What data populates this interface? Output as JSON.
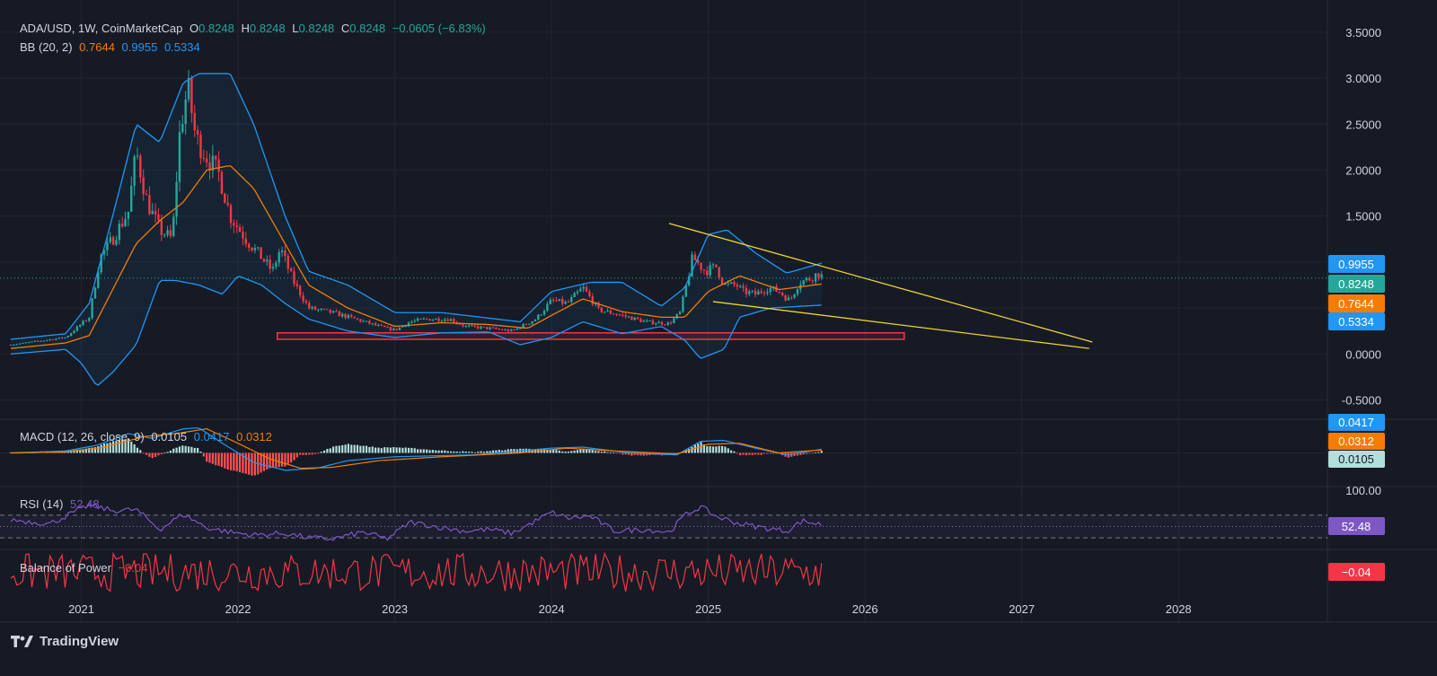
{
  "header": {
    "symbol": "ADA/USD, 1W, CoinMarketCap",
    "o_label": "O",
    "o_value": "0.8248",
    "h_label": "H",
    "h_value": "0.8248",
    "l_label": "L",
    "l_value": "0.8248",
    "c_label": "C",
    "c_value": "0.8248",
    "change": "−0.0605 (−6.83%)"
  },
  "bb_legend": {
    "label": "BB (20, 2)",
    "basis": "0.7644",
    "upper": "0.9955",
    "lower": "0.5334"
  },
  "macd_legend": {
    "label": "MACD (12, 26, close, 9)",
    "hist": "0.0105",
    "macd": "0.0417",
    "signal": "0.0312"
  },
  "rsi_legend": {
    "label": "RSI (14)",
    "value": "52.48"
  },
  "bop_legend": {
    "label": "Balance of Power",
    "value": "−0.04"
  },
  "footer": {
    "brand": "TradingView"
  },
  "colors": {
    "bg": "#161a25",
    "up": "#26a69a",
    "down": "#f23645",
    "basis": "#f57c00",
    "band": "#2196f3",
    "rsi": "#7e57c2",
    "trend": "#f0d232",
    "grid": "#232632"
  },
  "chart_data": {
    "type": "candlestick",
    "title": "ADA/USD, 1W, CoinMarketCap",
    "price_axis": {
      "ylim": [
        -0.7,
        3.85
      ],
      "ticks": [
        "3.5000",
        "3.0000",
        "2.5000",
        "2.0000",
        "1.5000",
        "0.0000",
        "-0.5000"
      ]
    },
    "time_axis": {
      "range": [
        2020.55,
        2028.95
      ],
      "ticks": [
        {
          "label": "2021",
          "t": 2021.0
        },
        {
          "label": "2022",
          "t": 2022.0
        },
        {
          "label": "2023",
          "t": 2023.0
        },
        {
          "label": "2024",
          "t": 2024.0
        },
        {
          "label": "2025",
          "t": 2025.0
        },
        {
          "label": "2026",
          "t": 2026.0
        },
        {
          "label": "2027",
          "t": 2027.0
        },
        {
          "label": "2028",
          "t": 2028.0
        }
      ]
    },
    "price_anchors": [
      [
        2020.55,
        0.1
      ],
      [
        2020.9,
        0.18
      ],
      [
        2021.05,
        0.4
      ],
      [
        2021.12,
        1.05
      ],
      [
        2021.2,
        1.25
      ],
      [
        2021.3,
        1.55
      ],
      [
        2021.35,
        2.2
      ],
      [
        2021.42,
        1.65
      ],
      [
        2021.5,
        1.35
      ],
      [
        2021.58,
        1.25
      ],
      [
        2021.63,
        2.45
      ],
      [
        2021.68,
        2.9
      ],
      [
        2021.73,
        2.35
      ],
      [
        2021.8,
        2.15
      ],
      [
        2021.88,
        1.95
      ],
      [
        2021.95,
        1.5
      ],
      [
        2022.05,
        1.25
      ],
      [
        2022.15,
        1.05
      ],
      [
        2022.22,
        0.9
      ],
      [
        2022.27,
        1.15
      ],
      [
        2022.35,
        0.8
      ],
      [
        2022.45,
        0.5
      ],
      [
        2022.6,
        0.45
      ],
      [
        2022.75,
        0.38
      ],
      [
        2022.9,
        0.3
      ],
      [
        2023.0,
        0.26
      ],
      [
        2023.1,
        0.35
      ],
      [
        2023.2,
        0.38
      ],
      [
        2023.35,
        0.38
      ],
      [
        2023.45,
        0.3
      ],
      [
        2023.6,
        0.28
      ],
      [
        2023.75,
        0.25
      ],
      [
        2023.9,
        0.38
      ],
      [
        2024.0,
        0.58
      ],
      [
        2024.1,
        0.55
      ],
      [
        2024.2,
        0.72
      ],
      [
        2024.3,
        0.48
      ],
      [
        2024.45,
        0.42
      ],
      [
        2024.6,
        0.35
      ],
      [
        2024.75,
        0.33
      ],
      [
        2024.82,
        0.45
      ],
      [
        2024.9,
        1.05
      ],
      [
        2024.98,
        0.9
      ],
      [
        2025.05,
        0.95
      ],
      [
        2025.1,
        0.75
      ],
      [
        2025.18,
        0.75
      ],
      [
        2025.22,
        0.68
      ],
      [
        2025.3,
        0.65
      ],
      [
        2025.38,
        0.72
      ],
      [
        2025.45,
        0.68
      ],
      [
        2025.52,
        0.58
      ],
      [
        2025.58,
        0.78
      ],
      [
        2025.65,
        0.82
      ],
      [
        2025.7,
        0.88
      ],
      [
        2025.74,
        0.8248
      ]
    ],
    "bb_upper_anchors": [
      [
        2020.55,
        0.16
      ],
      [
        2020.9,
        0.22
      ],
      [
        2021.05,
        0.55
      ],
      [
        2021.2,
        1.5
      ],
      [
        2021.35,
        2.5
      ],
      [
        2021.5,
        2.3
      ],
      [
        2021.65,
        2.95
      ],
      [
        2021.75,
        3.05
      ],
      [
        2021.95,
        3.05
      ],
      [
        2022.1,
        2.5
      ],
      [
        2022.3,
        1.5
      ],
      [
        2022.45,
        0.9
      ],
      [
        2022.7,
        0.75
      ],
      [
        2023.0,
        0.45
      ],
      [
        2023.3,
        0.45
      ],
      [
        2023.55,
        0.4
      ],
      [
        2023.8,
        0.35
      ],
      [
        2024.0,
        0.68
      ],
      [
        2024.25,
        0.78
      ],
      [
        2024.45,
        0.78
      ],
      [
        2024.7,
        0.52
      ],
      [
        2024.85,
        0.72
      ],
      [
        2025.0,
        1.3
      ],
      [
        2025.12,
        1.35
      ],
      [
        2025.3,
        1.1
      ],
      [
        2025.5,
        0.88
      ],
      [
        2025.74,
        0.9955
      ]
    ],
    "bb_basis_anchors": [
      [
        2020.55,
        0.06
      ],
      [
        2020.9,
        0.12
      ],
      [
        2021.05,
        0.2
      ],
      [
        2021.2,
        0.7
      ],
      [
        2021.35,
        1.2
      ],
      [
        2021.5,
        1.45
      ],
      [
        2021.65,
        1.65
      ],
      [
        2021.8,
        2.0
      ],
      [
        2021.95,
        2.05
      ],
      [
        2022.1,
        1.8
      ],
      [
        2022.3,
        1.2
      ],
      [
        2022.45,
        0.75
      ],
      [
        2022.7,
        0.5
      ],
      [
        2023.0,
        0.3
      ],
      [
        2023.3,
        0.34
      ],
      [
        2023.6,
        0.32
      ],
      [
        2023.85,
        0.28
      ],
      [
        2024.0,
        0.42
      ],
      [
        2024.2,
        0.6
      ],
      [
        2024.45,
        0.46
      ],
      [
        2024.7,
        0.4
      ],
      [
        2024.85,
        0.4
      ],
      [
        2025.0,
        0.68
      ],
      [
        2025.2,
        0.85
      ],
      [
        2025.45,
        0.7
      ],
      [
        2025.74,
        0.7644
      ]
    ],
    "bb_lower_anchors": [
      [
        2020.55,
        0.0
      ],
      [
        2020.9,
        0.05
      ],
      [
        2021.0,
        -0.1
      ],
      [
        2021.1,
        -0.35
      ],
      [
        2021.2,
        -0.2
      ],
      [
        2021.35,
        0.1
      ],
      [
        2021.5,
        0.8
      ],
      [
        2021.6,
        0.8
      ],
      [
        2021.75,
        0.75
      ],
      [
        2021.9,
        0.65
      ],
      [
        2022.0,
        0.85
      ],
      [
        2022.15,
        0.75
      ],
      [
        2022.3,
        0.55
      ],
      [
        2022.45,
        0.38
      ],
      [
        2022.7,
        0.25
      ],
      [
        2023.0,
        0.18
      ],
      [
        2023.3,
        0.23
      ],
      [
        2023.6,
        0.24
      ],
      [
        2023.8,
        0.1
      ],
      [
        2024.0,
        0.18
      ],
      [
        2024.2,
        0.35
      ],
      [
        2024.45,
        0.22
      ],
      [
        2024.7,
        0.3
      ],
      [
        2024.85,
        0.15
      ],
      [
        2024.95,
        -0.05
      ],
      [
        2025.1,
        0.05
      ],
      [
        2025.2,
        0.4
      ],
      [
        2025.4,
        0.5
      ],
      [
        2025.74,
        0.5334
      ]
    ],
    "trendlines": [
      {
        "from": [
          2024.75,
          1.42
        ],
        "to": [
          2027.45,
          0.13
        ]
      },
      {
        "from": [
          2025.03,
          0.57
        ],
        "to": [
          2027.43,
          0.06
        ]
      }
    ],
    "support_zone": {
      "t0": 2022.25,
      "t1": 2026.25,
      "p0": 0.16,
      "p1": 0.23
    },
    "current_price": 0.8248,
    "price_labels": [
      {
        "value": "0.9955",
        "price": 0.9955,
        "color": "#2196f3"
      },
      {
        "value": "0.8248",
        "price": 0.8248,
        "color": "#26a69a"
      },
      {
        "value": "0.7644",
        "price": 0.7644,
        "color": "#f57c00"
      },
      {
        "value": "0.5334",
        "price": 0.5334,
        "color": "#2196f3"
      }
    ],
    "macd": {
      "ylim": [
        -0.34,
        0.34
      ],
      "labels": [
        {
          "value": "0.0417",
          "level": 0.0417,
          "color": "#2196f3"
        },
        {
          "value": "0.0312",
          "level": 0.0312,
          "color": "#f57c00"
        },
        {
          "value": "0.0105",
          "level": 0.0105,
          "color": "#b2dfdb"
        }
      ],
      "macd_anchors": [
        [
          2020.55,
          0.0
        ],
        [
          2020.9,
          0.02
        ],
        [
          2021.1,
          0.08
        ],
        [
          2021.3,
          0.2
        ],
        [
          2021.45,
          0.15
        ],
        [
          2021.65,
          0.25
        ],
        [
          2021.75,
          0.26
        ],
        [
          2021.9,
          0.1
        ],
        [
          2022.1,
          -0.1
        ],
        [
          2022.3,
          -0.18
        ],
        [
          2022.5,
          -0.16
        ],
        [
          2022.7,
          -0.08
        ],
        [
          2023.0,
          -0.04
        ],
        [
          2023.5,
          -0.02
        ],
        [
          2024.0,
          0.05
        ],
        [
          2024.2,
          0.06
        ],
        [
          2024.5,
          0.0
        ],
        [
          2024.8,
          -0.02
        ],
        [
          2024.95,
          0.12
        ],
        [
          2025.1,
          0.13
        ],
        [
          2025.3,
          0.05
        ],
        [
          2025.5,
          -0.02
        ],
        [
          2025.74,
          0.0417
        ]
      ],
      "signal_anchors": [
        [
          2020.55,
          0.0
        ],
        [
          2020.9,
          0.01
        ],
        [
          2021.15,
          0.06
        ],
        [
          2021.4,
          0.17
        ],
        [
          2021.6,
          0.2
        ],
        [
          2021.8,
          0.25
        ],
        [
          2022.0,
          0.1
        ],
        [
          2022.2,
          -0.06
        ],
        [
          2022.4,
          -0.16
        ],
        [
          2022.6,
          -0.15
        ],
        [
          2022.9,
          -0.08
        ],
        [
          2023.3,
          -0.04
        ],
        [
          2023.8,
          0.0
        ],
        [
          2024.1,
          0.05
        ],
        [
          2024.4,
          0.02
        ],
        [
          2024.8,
          -0.01
        ],
        [
          2025.0,
          0.09
        ],
        [
          2025.2,
          0.1
        ],
        [
          2025.45,
          0.0
        ],
        [
          2025.74,
          0.0312
        ]
      ]
    },
    "rsi": {
      "ylim": [
        0,
        100
      ],
      "bands": [
        70,
        30
      ],
      "tick_label": "100.00",
      "current": 52.48,
      "anchors": [
        [
          2020.55,
          62
        ],
        [
          2020.8,
          55
        ],
        [
          2021.05,
          88
        ],
        [
          2021.2,
          78
        ],
        [
          2021.35,
          80
        ],
        [
          2021.5,
          45
        ],
        [
          2021.65,
          72
        ],
        [
          2021.8,
          48
        ],
        [
          2021.95,
          40
        ],
        [
          2022.1,
          35
        ],
        [
          2022.3,
          38
        ],
        [
          2022.45,
          30
        ],
        [
          2022.6,
          28
        ],
        [
          2022.8,
          40
        ],
        [
          2022.95,
          28
        ],
        [
          2023.1,
          58
        ],
        [
          2023.3,
          48
        ],
        [
          2023.45,
          42
        ],
        [
          2023.6,
          45
        ],
        [
          2023.75,
          38
        ],
        [
          2023.9,
          60
        ],
        [
          2024.0,
          75
        ],
        [
          2024.1,
          65
        ],
        [
          2024.25,
          68
        ],
        [
          2024.4,
          42
        ],
        [
          2024.6,
          45
        ],
        [
          2024.75,
          40
        ],
        [
          2024.85,
          70
        ],
        [
          2024.95,
          85
        ],
        [
          2025.05,
          68
        ],
        [
          2025.2,
          55
        ],
        [
          2025.35,
          48
        ],
        [
          2025.5,
          42
        ],
        [
          2025.6,
          60
        ],
        [
          2025.74,
          52.48
        ]
      ]
    },
    "bop": {
      "ylim": [
        -1,
        1
      ],
      "current": -0.04,
      "label_value": "−0.04"
    }
  }
}
